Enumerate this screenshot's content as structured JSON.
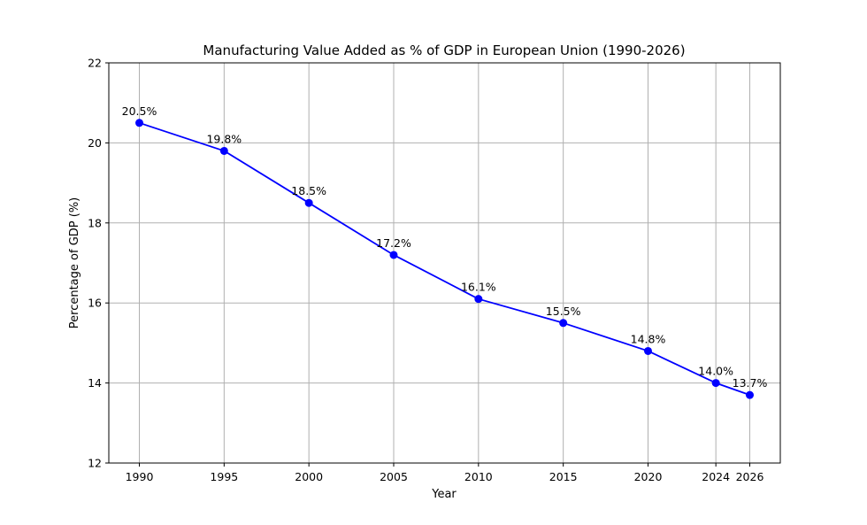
{
  "chart_data": {
    "type": "line",
    "title": "Manufacturing Value Added as % of GDP in European Union (1990-2026)",
    "xlabel": "Year",
    "ylabel": "Percentage of GDP (%)",
    "x": [
      1990,
      1995,
      2000,
      2005,
      2010,
      2015,
      2020,
      2024,
      2026
    ],
    "x_tick_labels": [
      "1990",
      "1995",
      "2000",
      "2005",
      "2010",
      "2015",
      "2020",
      "2024",
      "2026"
    ],
    "series": [
      {
        "values": [
          20.5,
          19.8,
          18.5,
          17.2,
          16.1,
          15.5,
          14.8,
          14.0,
          13.7
        ],
        "data_labels": [
          "20.5%",
          "19.8%",
          "18.5%",
          "17.2%",
          "16.1%",
          "15.5%",
          "14.8%",
          "14.0%",
          "13.7%"
        ],
        "color": "#0000ff",
        "marker": "circle"
      }
    ],
    "ylim": [
      12,
      22
    ],
    "xlim": [
      1988.2,
      2027.8
    ],
    "y_ticks": [
      12,
      14,
      16,
      18,
      20,
      22
    ],
    "y_tick_labels": [
      "12",
      "14",
      "16",
      "18",
      "20",
      "22"
    ],
    "grid": true,
    "grid_color": "#b0b0b0"
  }
}
